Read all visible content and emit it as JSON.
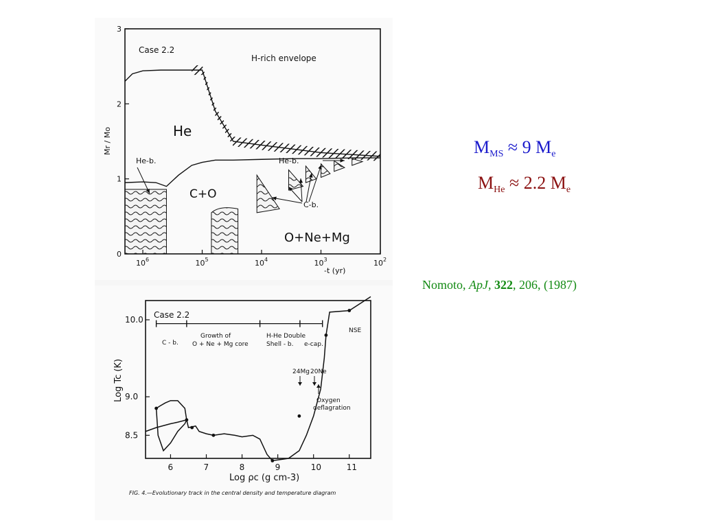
{
  "slide": {
    "mass_ms": {
      "prefix": "M",
      "sub": "MS",
      "rest": " ≈ 9 M",
      "sub2": "e"
    },
    "mass_he": {
      "prefix": "M",
      "sub": "He",
      "rest": " ≈ 2.2 M",
      "sub2": "e"
    },
    "citation": {
      "author": "Nomoto, ",
      "journal": "ApJ",
      "sep1": ", ",
      "volume": "322",
      "rest": ", 206, (1987)"
    },
    "colors": {
      "mass_ms": "#1a1acc",
      "mass_he": "#8b1111",
      "citation": "#138a13"
    }
  },
  "chart_data": [
    {
      "type": "area",
      "panel_label": "Case 2.2",
      "xlabel": "-t (yr)",
      "ylabel": "Mr / Mo",
      "x_scale": "log-reversed",
      "xlim": [
        2000000,
        100
      ],
      "ylim": [
        0,
        3
      ],
      "xticks": [
        1000000,
        100000,
        10000,
        1000,
        100
      ],
      "xtick_labels": [
        [
          "10",
          "6"
        ],
        [
          "10",
          "5"
        ],
        [
          "10",
          "4"
        ],
        [
          "10",
          "3"
        ],
        [
          "10",
          "2"
        ]
      ],
      "yticks": [
        0,
        1,
        2,
        3
      ],
      "ytick_labels": [
        "0",
        "1",
        "2",
        "3"
      ],
      "regions": [
        "H-rich envelope",
        "He",
        "C+O",
        "O+Ne+Mg"
      ],
      "annotations": [
        "He-b.",
        "He-b.",
        "C-b."
      ],
      "boundaries": {
        "he_core_top": {
          "x": [
            2000000,
            1500000,
            1000000,
            500000,
            250000,
            150000,
            100000,
            60000,
            30000,
            10000,
            1000,
            100
          ],
          "y": [
            2.3,
            2.4,
            2.44,
            2.45,
            2.45,
            2.45,
            2.45,
            1.9,
            1.5,
            1.45,
            1.35,
            1.3
          ]
        },
        "co_core_top": {
          "x": [
            2000000,
            1000000,
            600000,
            400000,
            250000,
            150000,
            100000,
            60000,
            30000,
            10000,
            3000,
            1000,
            300,
            100
          ],
          "y": [
            0.95,
            0.96,
            0.95,
            0.9,
            1.05,
            1.18,
            1.22,
            1.25,
            1.25,
            1.26,
            1.27,
            1.27,
            1.28,
            1.28
          ]
        }
      }
    },
    {
      "type": "line",
      "panel_label": "Case 2.2",
      "xlabel": "Log ρc (g cm-3)",
      "ylabel": "Log Tc (K)",
      "xlim": [
        5.3,
        11.6
      ],
      "ylim": [
        8.2,
        10.25
      ],
      "xticks": [
        6,
        7,
        8,
        9,
        10,
        11
      ],
      "yticks": [
        8.5,
        9.0,
        10.0
      ],
      "ytick_labels": [
        "8.5",
        "9.0",
        "10.0"
      ],
      "phases": [
        "C - b.",
        "Growth of",
        "O + Ne + Mg core",
        "H-He Double",
        "Shell - b.",
        "e-cap."
      ],
      "phase_marks": [
        5.6,
        6.45,
        8.5,
        9.62,
        10.25
      ],
      "annotations": [
        "24Mg",
        "20Ne",
        "Oxygen",
        "deflagration",
        "NSE"
      ],
      "caption": "FIG. 4.—Evolutionary track in the central density and temperature diagram",
      "series": [
        {
          "x": [
            5.3,
            5.6,
            6.0,
            6.2,
            6.45,
            6.5,
            6.7,
            6.8,
            7.0,
            7.2,
            7.5,
            7.8,
            8.0,
            8.3,
            8.5,
            8.7,
            8.85,
            9.0,
            9.3,
            9.6,
            9.8,
            10.0,
            10.2,
            10.3,
            10.35,
            10.45,
            11.0,
            11.6
          ],
          "y": [
            8.55,
            8.6,
            8.65,
            8.67,
            8.7,
            8.6,
            8.62,
            8.55,
            8.52,
            8.5,
            8.52,
            8.5,
            8.48,
            8.5,
            8.45,
            8.25,
            8.17,
            8.18,
            8.2,
            8.3,
            8.5,
            8.75,
            9.1,
            9.5,
            9.8,
            10.1,
            10.12,
            10.3
          ]
        },
        {
          "x": [
            5.6,
            5.65,
            5.8,
            6.0,
            6.2,
            6.4,
            6.45,
            6.4,
            6.2,
            6.0,
            5.85,
            5.7,
            5.6
          ],
          "y": [
            8.85,
            8.5,
            8.3,
            8.4,
            8.55,
            8.65,
            8.7,
            8.85,
            8.95,
            8.95,
            8.92,
            8.88,
            8.85
          ]
        }
      ]
    }
  ]
}
